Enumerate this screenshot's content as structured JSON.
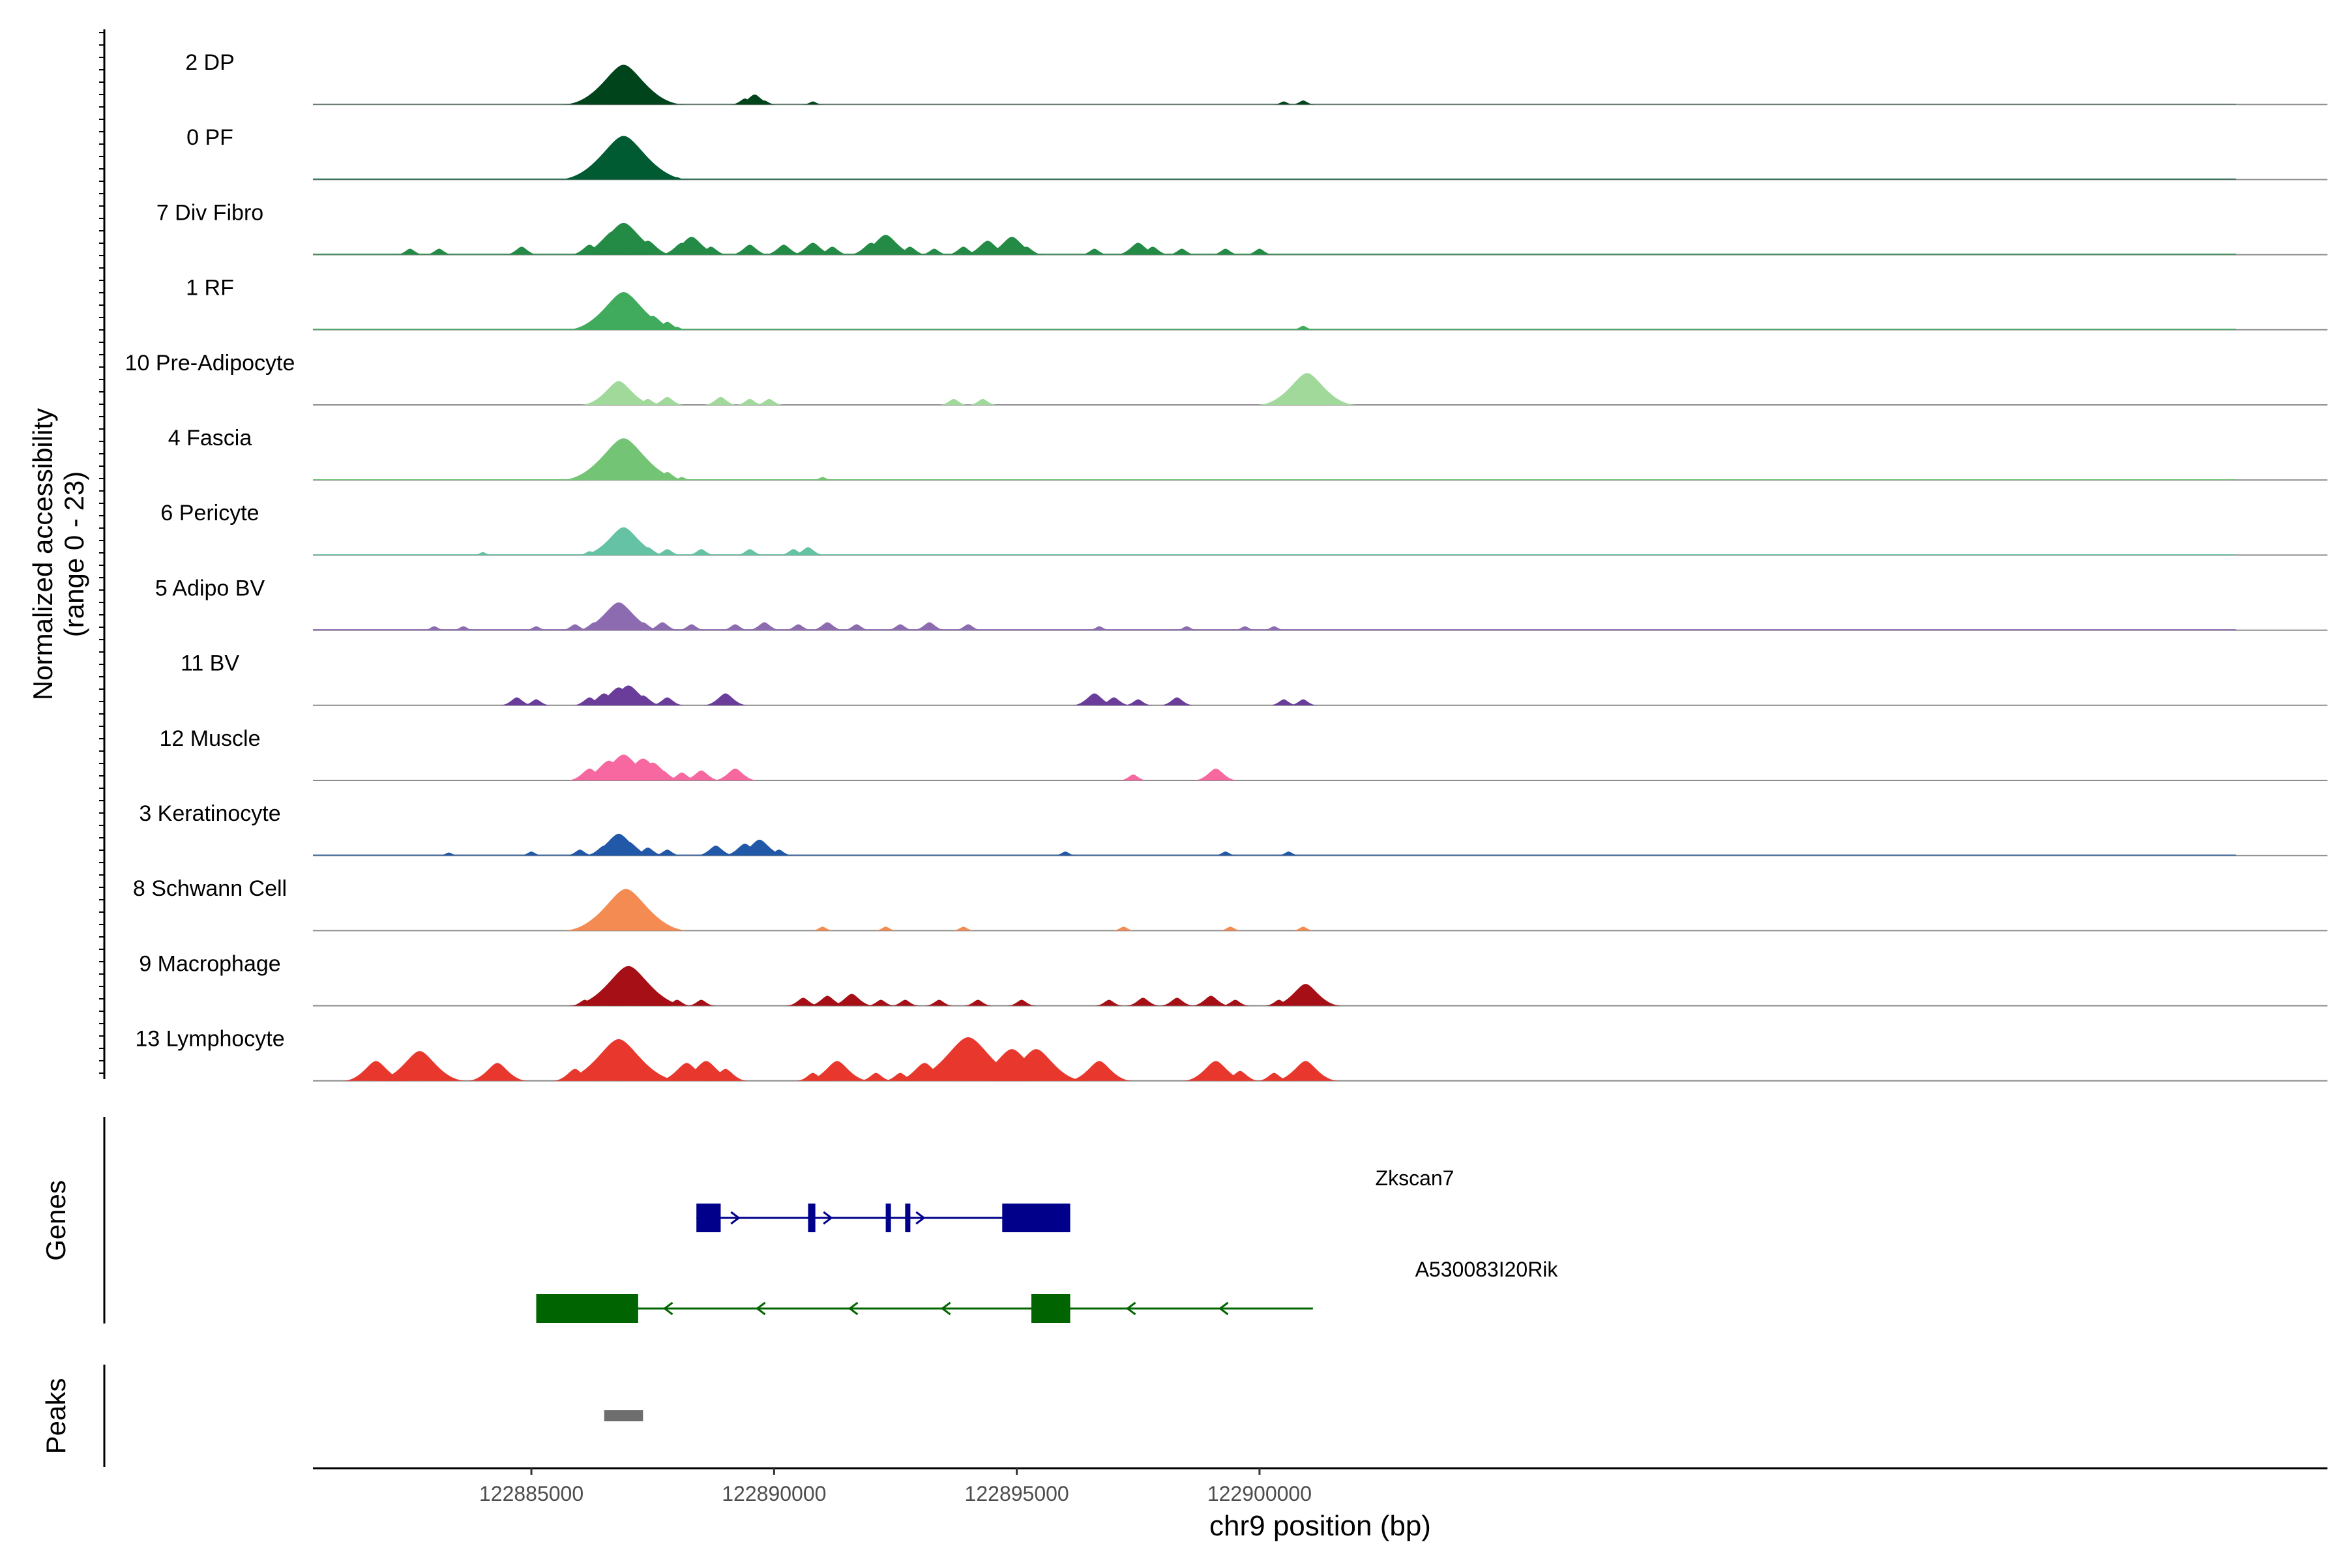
{
  "chart_data": {
    "type": "area",
    "title": "",
    "ylabel": "Normalized accessibility",
    "ylabel_range": "(range 0 - 23)",
    "xlabel": "chr9 position (bp)",
    "xlim": [
      122880500,
      122922000
    ],
    "ylim": [
      0,
      23
    ],
    "x_ticks": [
      "122885000",
      "122890000",
      "122895000",
      "122900000"
    ],
    "x_tick_values": [
      122885000,
      122890000,
      122895000,
      122900000
    ],
    "genes_label": "Genes",
    "peaks_label": "Peaks",
    "tracks": [
      {
        "name": "2 DP",
        "color": "#00441b",
        "baseline": 0.25,
        "points": [
          [
            122886600,
            3
          ],
          [
            122886800,
            10
          ],
          [
            122886900,
            20
          ],
          [
            122887000,
            13
          ],
          [
            122887100,
            7
          ],
          [
            122887200,
            5
          ],
          [
            122887400,
            4
          ],
          [
            122887600,
            3
          ],
          [
            122889400,
            3
          ],
          [
            122889600,
            5
          ],
          [
            122889800,
            2
          ],
          [
            122890800,
            1.5
          ],
          [
            122900500,
            1.5
          ],
          [
            122900900,
            2
          ]
        ]
      },
      {
        "name": "0 PF",
        "color": "#005a32",
        "baseline": 0.5,
        "points": [
          [
            122886400,
            1.5
          ],
          [
            122886600,
            4
          ],
          [
            122886800,
            16
          ],
          [
            122886900,
            22
          ],
          [
            122887000,
            16
          ],
          [
            122887100,
            10
          ],
          [
            122887300,
            5
          ],
          [
            122887600,
            3
          ],
          [
            122888000,
            1.2
          ]
        ]
      },
      {
        "name": "7 Div Fibro",
        "color": "#238b45",
        "baseline": 0.5,
        "points": [
          [
            122882500,
            3
          ],
          [
            122883100,
            3
          ],
          [
            122884800,
            4
          ],
          [
            122886200,
            5
          ],
          [
            122886500,
            7
          ],
          [
            122886700,
            12
          ],
          [
            122886900,
            16
          ],
          [
            122887100,
            10
          ],
          [
            122887400,
            7
          ],
          [
            122888100,
            6
          ],
          [
            122888300,
            9
          ],
          [
            122888700,
            4
          ],
          [
            122889500,
            5
          ],
          [
            122890200,
            5
          ],
          [
            122890800,
            6
          ],
          [
            122891200,
            4
          ],
          [
            122892000,
            6
          ],
          [
            122892300,
            10
          ],
          [
            122892800,
            4
          ],
          [
            122893300,
            3
          ],
          [
            122893900,
            4
          ],
          [
            122894400,
            7
          ],
          [
            122894900,
            9
          ],
          [
            122895200,
            4
          ],
          [
            122896600,
            3
          ],
          [
            122897500,
            6
          ],
          [
            122897800,
            4
          ],
          [
            122898400,
            3
          ],
          [
            122899300,
            3
          ],
          [
            122900000,
            3
          ]
        ]
      },
      {
        "name": "1 RF",
        "color": "#41ab5d",
        "baseline": 0.5,
        "points": [
          [
            122886500,
            3
          ],
          [
            122886700,
            13
          ],
          [
            122886900,
            19
          ],
          [
            122887000,
            15
          ],
          [
            122887200,
            10
          ],
          [
            122887500,
            7
          ],
          [
            122887800,
            4
          ],
          [
            122888000,
            1.5
          ],
          [
            122900900,
            2
          ]
        ]
      },
      {
        "name": "10 Pre-Adipocyte",
        "color": "#a1d99b",
        "baseline": 0,
        "points": [
          [
            122886700,
            5
          ],
          [
            122886800,
            12
          ],
          [
            122886900,
            7
          ],
          [
            122887100,
            3
          ],
          [
            122887400,
            3
          ],
          [
            122887800,
            4
          ],
          [
            122888900,
            4
          ],
          [
            122889500,
            3
          ],
          [
            122889900,
            3
          ],
          [
            122893700,
            3
          ],
          [
            122894300,
            3
          ],
          [
            122900700,
            6
          ],
          [
            122900850,
            12
          ],
          [
            122900980,
            16
          ]
        ]
      },
      {
        "name": "4 Fascia",
        "color": "#74c476",
        "baseline": 0.4,
        "points": [
          [
            122886400,
            3
          ],
          [
            122886600,
            7
          ],
          [
            122886800,
            14
          ],
          [
            122886900,
            21
          ],
          [
            122887000,
            15
          ],
          [
            122887200,
            9
          ],
          [
            122887500,
            6
          ],
          [
            122887800,
            4
          ],
          [
            122888100,
            1.5
          ],
          [
            122891000,
            1.5
          ]
        ]
      },
      {
        "name": "6 Pericyte",
        "color": "#66c2a4",
        "baseline": 0.4,
        "points": [
          [
            122884000,
            1.5
          ],
          [
            122886200,
            2
          ],
          [
            122886500,
            4
          ],
          [
            122886700,
            9
          ],
          [
            122886900,
            14
          ],
          [
            122887100,
            8
          ],
          [
            122887400,
            4
          ],
          [
            122887800,
            3
          ],
          [
            122888500,
            3
          ],
          [
            122889500,
            3
          ],
          [
            122890400,
            3
          ],
          [
            122890700,
            4
          ]
        ]
      },
      {
        "name": "5 Adipo BV",
        "color": "#8c6bb1",
        "baseline": 0.5,
        "points": [
          [
            122883000,
            2
          ],
          [
            122883600,
            2
          ],
          [
            122885100,
            2
          ],
          [
            122885900,
            3
          ],
          [
            122886300,
            4
          ],
          [
            122886600,
            6
          ],
          [
            122886800,
            14
          ],
          [
            122887000,
            9
          ],
          [
            122887300,
            4
          ],
          [
            122887700,
            4
          ],
          [
            122888300,
            3
          ],
          [
            122889200,
            3
          ],
          [
            122889800,
            4
          ],
          [
            122890500,
            3
          ],
          [
            122891100,
            4
          ],
          [
            122891700,
            3
          ],
          [
            122892600,
            3
          ],
          [
            122893200,
            4
          ],
          [
            122894000,
            3
          ],
          [
            122896700,
            2
          ],
          [
            122898500,
            2
          ],
          [
            122899700,
            2
          ],
          [
            122900300,
            2
          ]
        ]
      },
      {
        "name": "11 BV",
        "color": "#6a3d9a",
        "baseline": 0,
        "points": [
          [
            122884700,
            4
          ],
          [
            122885100,
            3
          ],
          [
            122886200,
            4
          ],
          [
            122886500,
            6
          ],
          [
            122886800,
            9
          ],
          [
            122887000,
            10
          ],
          [
            122887300,
            5
          ],
          [
            122887800,
            4
          ],
          [
            122889000,
            6
          ],
          [
            122896600,
            6
          ],
          [
            122897000,
            4
          ],
          [
            122897500,
            3
          ],
          [
            122898300,
            4
          ],
          [
            122900500,
            3
          ],
          [
            122900900,
            3
          ]
        ]
      },
      {
        "name": "12 Muscle",
        "color": "#f768a1",
        "baseline": 0,
        "points": [
          [
            122886200,
            6
          ],
          [
            122886600,
            10
          ],
          [
            122886900,
            13
          ],
          [
            122887100,
            8
          ],
          [
            122887300,
            11
          ],
          [
            122887500,
            9
          ],
          [
            122887700,
            5
          ],
          [
            122888100,
            4
          ],
          [
            122888500,
            5
          ],
          [
            122889200,
            6
          ],
          [
            122897400,
            3
          ],
          [
            122899100,
            6
          ]
        ]
      },
      {
        "name": "3 Keratinocyte",
        "color": "#2158a8",
        "baseline": 0.5,
        "points": [
          [
            122883300,
            1.5
          ],
          [
            122885000,
            2
          ],
          [
            122886000,
            3
          ],
          [
            122886500,
            5
          ],
          [
            122886800,
            11
          ],
          [
            122887000,
            7
          ],
          [
            122887400,
            4
          ],
          [
            122887800,
            3
          ],
          [
            122888800,
            5
          ],
          [
            122889400,
            6
          ],
          [
            122889700,
            8
          ],
          [
            122890100,
            3
          ],
          [
            122896000,
            2
          ],
          [
            122899300,
            2
          ],
          [
            122900600,
            2
          ]
        ]
      },
      {
        "name": "8 Schwann Cell",
        "color": "#f48b52",
        "baseline": 0,
        "points": [
          [
            122886600,
            6
          ],
          [
            122886800,
            17
          ],
          [
            122886950,
            21
          ],
          [
            122887100,
            14
          ],
          [
            122887300,
            8
          ],
          [
            122887500,
            4
          ],
          [
            122887800,
            3
          ],
          [
            122891000,
            2
          ],
          [
            122892300,
            2
          ],
          [
            122893900,
            2
          ],
          [
            122897200,
            2
          ],
          [
            122899400,
            2
          ],
          [
            122900900,
            2
          ]
        ]
      },
      {
        "name": "9 Macrophage",
        "color": "#a50f15",
        "baseline": 0,
        "points": [
          [
            122886100,
            3
          ],
          [
            122886500,
            4
          ],
          [
            122886800,
            14
          ],
          [
            122887000,
            20
          ],
          [
            122887200,
            10
          ],
          [
            122887500,
            4
          ],
          [
            122888000,
            3
          ],
          [
            122888500,
            3
          ],
          [
            122890600,
            4
          ],
          [
            122891100,
            5
          ],
          [
            122891600,
            6
          ],
          [
            122892200,
            3
          ],
          [
            122892700,
            3
          ],
          [
            122893400,
            3
          ],
          [
            122894200,
            3
          ],
          [
            122895100,
            3
          ],
          [
            122896900,
            3
          ],
          [
            122897600,
            4
          ],
          [
            122898300,
            4
          ],
          [
            122899000,
            5
          ],
          [
            122899500,
            3
          ],
          [
            122900400,
            3
          ],
          [
            122900950,
            11
          ]
        ]
      },
      {
        "name": "13 Lymphocyte",
        "color": "#e8382e",
        "baseline": 0,
        "points": [
          [
            122881800,
            10
          ],
          [
            122882200,
            4
          ],
          [
            122882700,
            15
          ],
          [
            122883100,
            5
          ],
          [
            122884300,
            9
          ],
          [
            122885900,
            6
          ],
          [
            122886800,
            21
          ],
          [
            122887200,
            5
          ],
          [
            122888200,
            9
          ],
          [
            122888600,
            10
          ],
          [
            122889000,
            6
          ],
          [
            122890800,
            4
          ],
          [
            122891300,
            10
          ],
          [
            122892100,
            4
          ],
          [
            122892600,
            4
          ],
          [
            122893100,
            9
          ],
          [
            122894000,
            22
          ],
          [
            122894900,
            16
          ],
          [
            122895400,
            16
          ],
          [
            122896700,
            10
          ],
          [
            122899100,
            10
          ],
          [
            122899600,
            5
          ],
          [
            122900300,
            4
          ],
          [
            122900950,
            10
          ]
        ]
      }
    ],
    "genes": [
      {
        "name": "Zkscan7",
        "color": "#00008b",
        "strand": "+",
        "start": 122888400,
        "end": 122896100,
        "exons": [
          [
            122888400,
            122888900
          ],
          [
            122890700,
            122890850
          ],
          [
            122892300,
            122892400
          ],
          [
            122892700,
            122892800
          ],
          [
            122894700,
            122896100
          ]
        ]
      },
      {
        "name": "A530083I20Rik",
        "color": "#006400",
        "strand": "-",
        "start": 122885100,
        "end": 122901100,
        "exons": [
          [
            122885100,
            122887200
          ],
          [
            122895300,
            122896100
          ]
        ]
      }
    ],
    "peaks": [
      {
        "start": 122886500,
        "end": 122887300,
        "color": "#6e6e6e"
      }
    ]
  }
}
